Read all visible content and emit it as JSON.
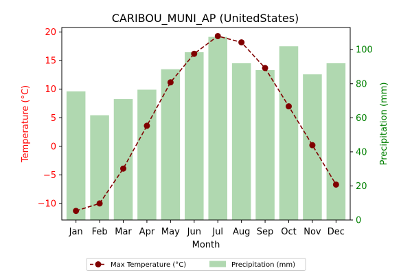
{
  "chart_data": {
    "type": "bar+line",
    "title": "CARIBOU_MUNI_AP (UnitedStates)",
    "xlabel": "Month",
    "categories": [
      "Jan",
      "Feb",
      "Mar",
      "Apr",
      "May",
      "Jun",
      "Jul",
      "Aug",
      "Sep",
      "Oct",
      "Nov",
      "Dec"
    ],
    "left_axis": {
      "label": "Temperature (°C)",
      "color": "#ff0000",
      "ylim": [
        -12.9,
        20.8
      ],
      "ticks": [
        -10,
        -5,
        0,
        5,
        10,
        15,
        20
      ],
      "tick_labels": [
        "−10",
        "−5",
        "0",
        "5",
        "10",
        "15",
        "20"
      ]
    },
    "right_axis": {
      "label": "Precipitation (mm)",
      "color": "#008000",
      "ylim": [
        0,
        113
      ],
      "ticks": [
        0,
        20,
        40,
        60,
        80,
        100
      ],
      "tick_labels": [
        "0",
        "20",
        "40",
        "60",
        "80",
        "100"
      ]
    },
    "series": [
      {
        "name": "Max Temperature (°C)",
        "kind": "line",
        "axis": "left",
        "color": "#800000",
        "style": "dashed-with-circle-markers",
        "values": [
          -11.3,
          -10.0,
          -3.9,
          3.6,
          11.2,
          16.2,
          19.3,
          18.2,
          13.7,
          7.0,
          0.2,
          -6.7
        ]
      },
      {
        "name": "Precipitation (mm)",
        "kind": "bar",
        "axis": "right",
        "color": "#b0d8b0",
        "values": [
          75.5,
          61.5,
          71.0,
          76.5,
          88.5,
          98.5,
          107.5,
          92.0,
          88.0,
          102.0,
          85.5,
          92.0
        ]
      }
    ],
    "legend": {
      "placement": "bottom-center",
      "entries": [
        "Max Temperature (°C)",
        "Precipitation (mm)"
      ]
    },
    "grid": false
  }
}
